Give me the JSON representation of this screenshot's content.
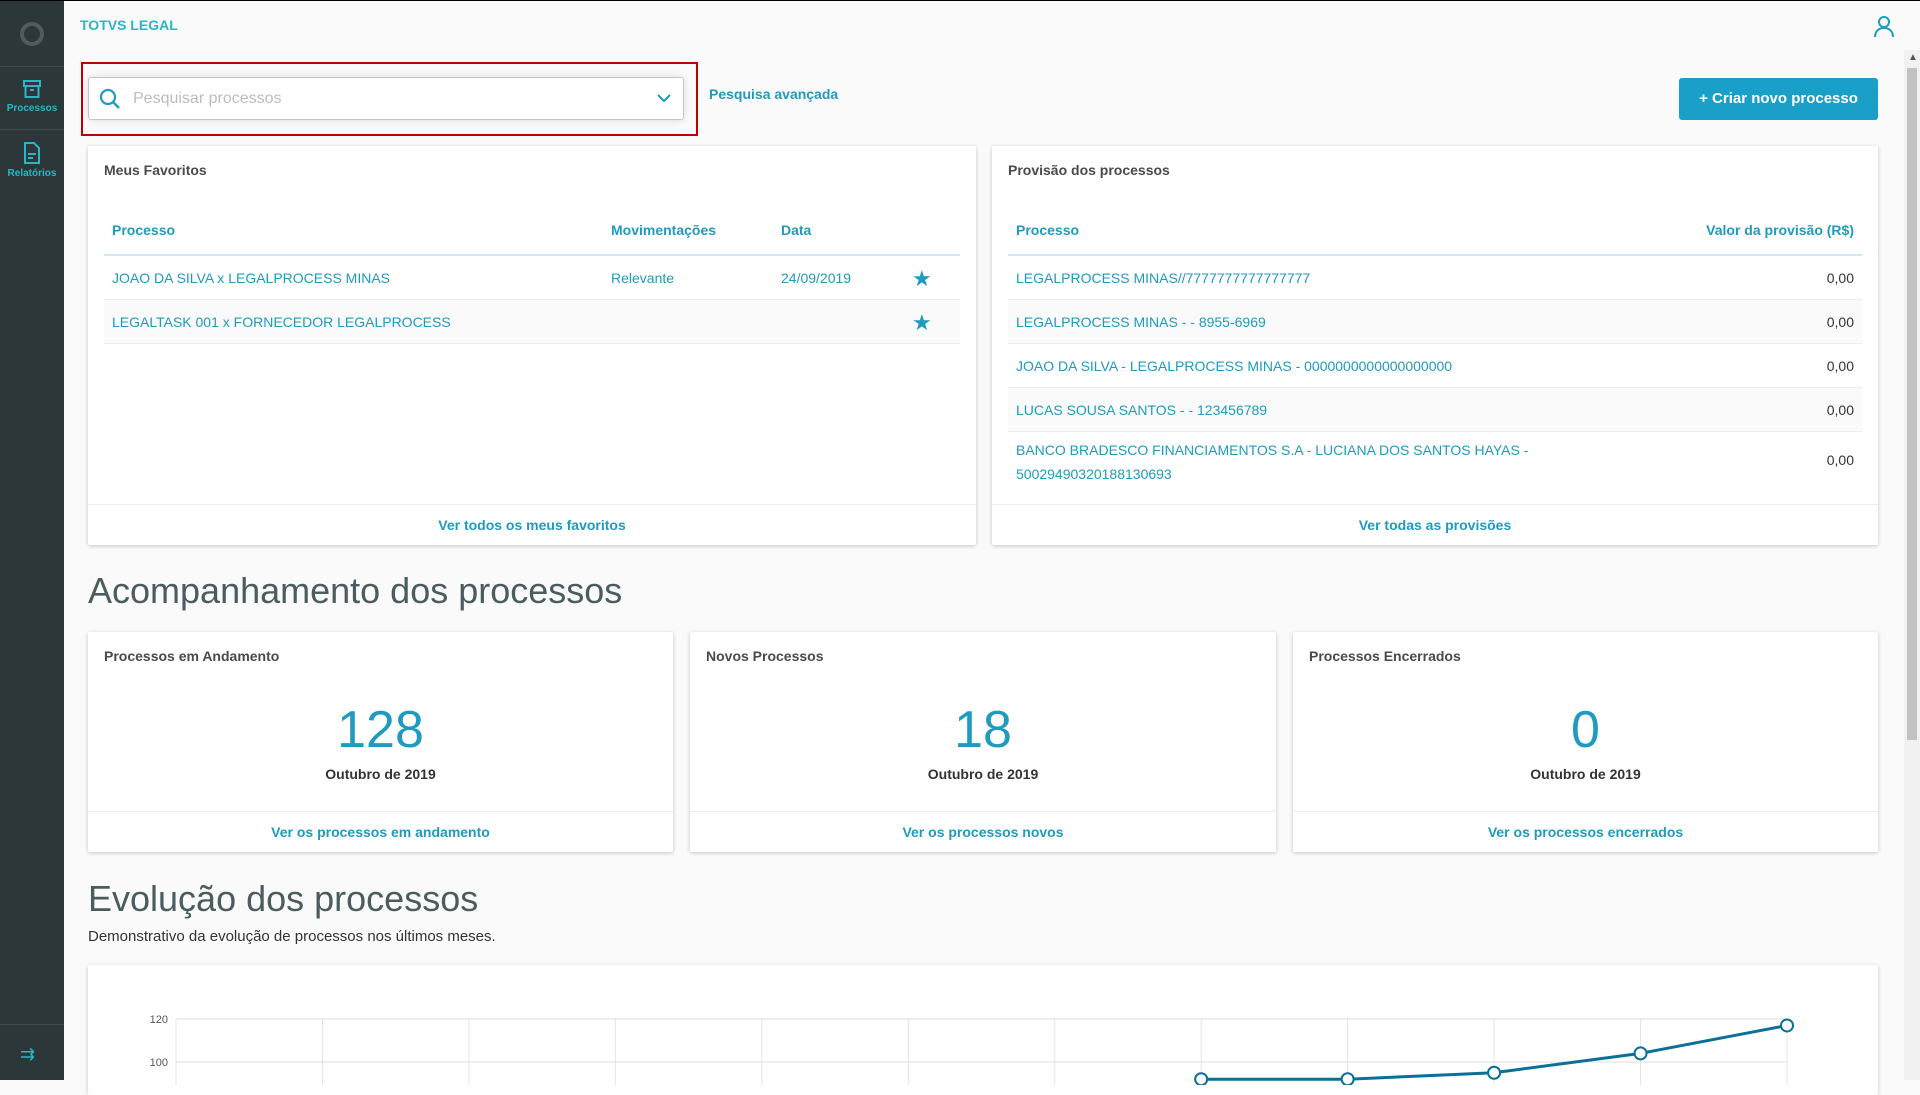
{
  "app": {
    "title": "TOTVS LEGAL"
  },
  "sidebar": {
    "items": [
      {
        "label": "Processos",
        "icon": "archive-icon"
      },
      {
        "label": "Relatórios",
        "icon": "document-icon"
      }
    ]
  },
  "search": {
    "placeholder": "Pesquisar processos",
    "value": ""
  },
  "header": {
    "advanced_search": "Pesquisa avançada",
    "new_process": "+ Criar novo processo"
  },
  "favorites": {
    "title": "Meus Favoritos",
    "columns": [
      "Processo",
      "Movimentações",
      "Data"
    ],
    "rows": [
      {
        "processo": "JOAO DA SILVA x LEGALPROCESS MINAS",
        "mov": "Relevante",
        "data": "24/09/2019",
        "favorite": true
      },
      {
        "processo": "LEGALTASK 001 x FORNECEDOR LEGALPROCESS",
        "mov": "",
        "data": "",
        "favorite": true
      }
    ],
    "footer": "Ver todos os meus favoritos"
  },
  "provisions": {
    "title": "Provisão dos processos",
    "columns": [
      "Processo",
      "Valor da provisão (R$)"
    ],
    "rows": [
      {
        "processo": "LEGALPROCESS MINAS//7777777777777777",
        "valor": "0,00"
      },
      {
        "processo": "LEGALPROCESS MINAS - - 8955-6969",
        "valor": "0,00"
      },
      {
        "processo": "JOAO DA SILVA - LEGALPROCESS MINAS - 0000000000000000000",
        "valor": "0,00"
      },
      {
        "processo": "LUCAS SOUSA SANTOS - - 123456789",
        "valor": "0,00"
      },
      {
        "processo": "BANCO BRADESCO FINANCIAMENTOS S.A - LUCIANA DOS SANTOS HAYAS - 50029490320188130693",
        "valor": "0,00"
      }
    ],
    "footer": "Ver todas as provisões"
  },
  "tracking": {
    "heading": "Acompanhamento dos processos",
    "cards": [
      {
        "title": "Processos em Andamento",
        "value": "128",
        "period": "Outubro de 2019",
        "link": "Ver os processos em andamento"
      },
      {
        "title": "Novos Processos",
        "value": "18",
        "period": "Outubro de 2019",
        "link": "Ver os processos novos"
      },
      {
        "title": "Processos Encerrados",
        "value": "0",
        "period": "Outubro de 2019",
        "link": "Ver os processos encerrados"
      }
    ]
  },
  "evolution": {
    "heading": "Evolução dos processos",
    "subtitle": "Demonstrativo da evolução de processos nos últimos meses."
  },
  "chart_data": {
    "type": "line",
    "y_ticks": [
      "120",
      "100"
    ],
    "ylim_visible": [
      90,
      120
    ],
    "grid": true,
    "color": "#0c6f97",
    "values": [
      null,
      null,
      null,
      null,
      null,
      null,
      null,
      92,
      92,
      95,
      104,
      117
    ]
  },
  "colors": {
    "accent": "#1e9bbf",
    "sidebar": "#2c3739",
    "highlight_box": "#c00000"
  }
}
